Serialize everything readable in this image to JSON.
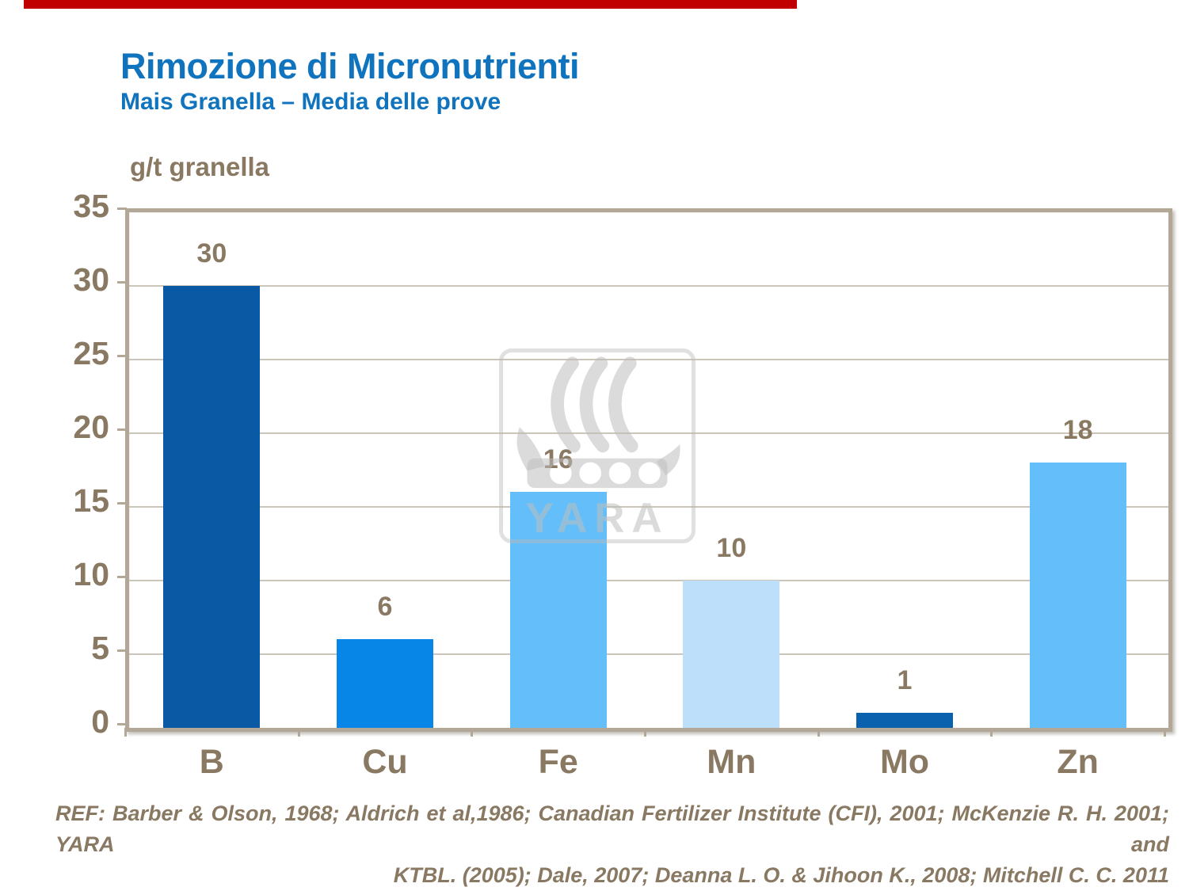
{
  "top_strip": {
    "color": "#C00000"
  },
  "header": {
    "title": "Rimozione di Micronutrienti",
    "subtitle": "Mais Granella – Media delle prove",
    "title_color": "#1073BE"
  },
  "chart_data": {
    "type": "bar",
    "title": "Rimozione di Micronutrienti - Mais Granella, Media delle prove",
    "ylabel": "g/t granella",
    "xlabel": "",
    "ylim": [
      0,
      35
    ],
    "ytick_step": 5,
    "grid": true,
    "legend_position": "none",
    "categories": [
      "B",
      "Cu",
      "Fe",
      "Mn",
      "Mo",
      "Zn"
    ],
    "values": [
      30,
      6,
      16,
      10,
      1,
      18
    ],
    "bar_colors": [
      "#0A59A4",
      "#0786E7",
      "#64BEFA",
      "#BEDFFA",
      "#0A62AE",
      "#64BEFA"
    ],
    "text_color": "#8A7962",
    "grid_color": "#CCC5B9",
    "frame_color": "#B3A798"
  },
  "watermark": {
    "text": "YARA",
    "logo": "yara-viking-ship-logo"
  },
  "footer": {
    "line1": "REF: Barber & Olson, 1968; Aldrich et al,1986; Canadian Fertilizer Institute (CFI), 2001; McKenzie R. H. 2001; YARA and",
    "line2": "KTBL. (2005); Dale, 2007; Deanna L. O. & Jihoon K.,  2008; Mitchell C. C. 2011"
  }
}
